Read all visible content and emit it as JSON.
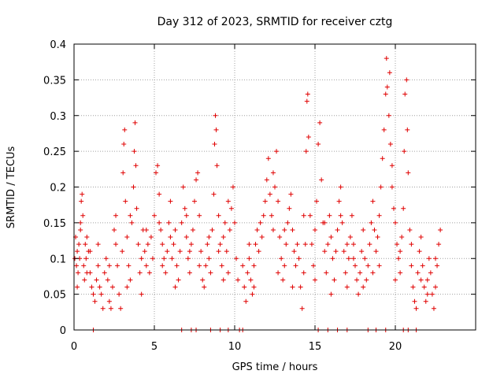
{
  "chart_data": {
    "type": "scatter",
    "title": "Day 312 of 2023, SRMTID for receiver cztg",
    "xlabel": "GPS time / hours",
    "ylabel": "SRMTID / TECUs",
    "xlim": [
      0,
      25
    ],
    "ylim": [
      0,
      0.4
    ],
    "x_ticks": [
      0,
      5,
      10,
      15,
      20
    ],
    "x_tick_labels": [
      "0",
      "5",
      "10",
      "15",
      "20"
    ],
    "y_ticks": [
      0,
      0.05,
      0.1,
      0.15,
      0.2,
      0.25,
      0.3,
      0.35,
      0.4
    ],
    "y_tick_labels": [
      "0",
      "0.05",
      "0.1",
      "0.15",
      "0.2",
      "0.25",
      "0.3",
      "0.35",
      "0.4"
    ],
    "grid": true,
    "legend": "none",
    "marker": "+",
    "color": "#e00000",
    "series": [
      {
        "name": "SRMTID",
        "points": [
          [
            0.05,
            0.1
          ],
          [
            0.1,
            0.13
          ],
          [
            0.15,
            0.09
          ],
          [
            0.2,
            0.11
          ],
          [
            0.25,
            0.08
          ],
          [
            0.3,
            0.12
          ],
          [
            0.35,
            0.1
          ],
          [
            0.4,
            0.15
          ],
          [
            0.45,
            0.18
          ],
          [
            0.5,
            0.19
          ],
          [
            0.55,
            0.16
          ],
          [
            0.6,
            0.09
          ],
          [
            0.65,
            0.07
          ],
          [
            0.7,
            0.12
          ],
          [
            0.75,
            0.1
          ],
          [
            0.8,
            0.13
          ],
          [
            0.9,
            0.11
          ],
          [
            1.0,
            0.08
          ],
          [
            1.1,
            0.06
          ],
          [
            1.2,
            0.05
          ],
          [
            1.3,
            0.04
          ],
          [
            1.4,
            0.07
          ],
          [
            1.5,
            0.09
          ],
          [
            1.6,
            0.06
          ],
          [
            1.7,
            0.05
          ],
          [
            1.8,
            0.03
          ],
          [
            1.9,
            0.08
          ],
          [
            2.0,
            0.1
          ],
          [
            2.1,
            0.07
          ],
          [
            2.2,
            0.04
          ],
          [
            2.3,
            0.03
          ],
          [
            2.4,
            0.06
          ],
          [
            2.5,
            0.14
          ],
          [
            2.6,
            0.16
          ],
          [
            2.7,
            0.09
          ],
          [
            2.8,
            0.05
          ],
          [
            2.9,
            0.03
          ],
          [
            3.0,
            0.11
          ],
          [
            3.05,
            0.22
          ],
          [
            3.1,
            0.26
          ],
          [
            3.15,
            0.28
          ],
          [
            3.2,
            0.18
          ],
          [
            3.3,
            0.13
          ],
          [
            3.4,
            0.09
          ],
          [
            3.5,
            0.07
          ],
          [
            3.6,
            0.15
          ],
          [
            3.7,
            0.2
          ],
          [
            3.75,
            0.25
          ],
          [
            3.8,
            0.29
          ],
          [
            3.85,
            0.23
          ],
          [
            3.9,
            0.17
          ],
          [
            4.0,
            0.12
          ],
          [
            4.1,
            0.08
          ],
          [
            4.2,
            0.1
          ],
          [
            4.3,
            0.14
          ],
          [
            4.4,
            0.11
          ],
          [
            4.5,
            0.09
          ],
          [
            4.6,
            0.12
          ],
          [
            4.7,
            0.08
          ],
          [
            4.8,
            0.13
          ],
          [
            4.9,
            0.1
          ],
          [
            5.0,
            0.16
          ],
          [
            5.1,
            0.22
          ],
          [
            5.2,
            0.23
          ],
          [
            5.3,
            0.19
          ],
          [
            5.4,
            0.14
          ],
          [
            5.5,
            0.12
          ],
          [
            5.6,
            0.1
          ],
          [
            5.7,
            0.08
          ],
          [
            5.8,
            0.11
          ],
          [
            5.9,
            0.15
          ],
          [
            6.0,
            0.13
          ],
          [
            6.1,
            0.1
          ],
          [
            6.2,
            0.12
          ],
          [
            6.3,
            0.14
          ],
          [
            6.4,
            0.09
          ],
          [
            6.5,
            0.07
          ],
          [
            6.6,
            0.11
          ],
          [
            6.7,
            0.15
          ],
          [
            6.8,
            0.2
          ],
          [
            6.9,
            0.17
          ],
          [
            7.0,
            0.13
          ],
          [
            7.1,
            0.1
          ],
          [
            7.2,
            0.08
          ],
          [
            7.3,
            0.12
          ],
          [
            7.4,
            0.14
          ],
          [
            7.5,
            0.18
          ],
          [
            7.6,
            0.21
          ],
          [
            7.7,
            0.22
          ],
          [
            7.8,
            0.16
          ],
          [
            7.9,
            0.11
          ],
          [
            8.0,
            0.07
          ],
          [
            8.1,
            0.06
          ],
          [
            8.2,
            0.09
          ],
          [
            8.3,
            0.12
          ],
          [
            8.4,
            0.1
          ],
          [
            8.5,
            0.08
          ],
          [
            8.6,
            0.14
          ],
          [
            8.7,
            0.19
          ],
          [
            8.75,
            0.26
          ],
          [
            8.8,
            0.3
          ],
          [
            8.85,
            0.28
          ],
          [
            8.9,
            0.23
          ],
          [
            9.0,
            0.16
          ],
          [
            9.1,
            0.12
          ],
          [
            9.2,
            0.09
          ],
          [
            9.3,
            0.13
          ],
          [
            9.4,
            0.15
          ],
          [
            9.5,
            0.11
          ],
          [
            9.6,
            0.08
          ],
          [
            9.7,
            0.14
          ],
          [
            9.8,
            0.17
          ],
          [
            9.9,
            0.2
          ],
          [
            10.0,
            0.15
          ],
          [
            10.1,
            0.1
          ],
          [
            10.2,
            0.07
          ],
          [
            10.5,
            0.09
          ],
          [
            10.6,
            0.06
          ],
          [
            10.7,
            0.04
          ],
          [
            10.8,
            0.08
          ],
          [
            10.9,
            0.1
          ],
          [
            11.0,
            0.07
          ],
          [
            11.1,
            0.05
          ],
          [
            11.2,
            0.09
          ],
          [
            11.3,
            0.12
          ],
          [
            11.4,
            0.14
          ],
          [
            11.5,
            0.11
          ],
          [
            11.6,
            0.15
          ],
          [
            11.7,
            0.13
          ],
          [
            11.8,
            0.16
          ],
          [
            11.9,
            0.18
          ],
          [
            12.0,
            0.21
          ],
          [
            12.1,
            0.24
          ],
          [
            12.2,
            0.19
          ],
          [
            12.3,
            0.16
          ],
          [
            12.4,
            0.14
          ],
          [
            12.5,
            0.2
          ],
          [
            12.6,
            0.25
          ],
          [
            12.7,
            0.18
          ],
          [
            12.8,
            0.13
          ],
          [
            12.9,
            0.1
          ],
          [
            13.0,
            0.07
          ],
          [
            13.1,
            0.09
          ],
          [
            13.2,
            0.12
          ],
          [
            13.3,
            0.15
          ],
          [
            13.4,
            0.17
          ],
          [
            13.5,
            0.19
          ],
          [
            13.6,
            0.14
          ],
          [
            13.7,
            0.11
          ],
          [
            13.8,
            0.09
          ],
          [
            13.9,
            0.12
          ],
          [
            14.0,
            0.1
          ],
          [
            14.1,
            0.06
          ],
          [
            14.2,
            0.03
          ],
          [
            14.3,
            0.08
          ],
          [
            14.4,
            0.12
          ],
          [
            14.45,
            0.25
          ],
          [
            14.5,
            0.32
          ],
          [
            14.55,
            0.33
          ],
          [
            14.6,
            0.27
          ],
          [
            14.7,
            0.16
          ],
          [
            14.8,
            0.12
          ],
          [
            14.9,
            0.09
          ],
          [
            15.0,
            0.14
          ],
          [
            15.1,
            0.18
          ],
          [
            15.2,
            0.26
          ],
          [
            15.3,
            0.29
          ],
          [
            15.4,
            0.21
          ],
          [
            15.5,
            0.15
          ],
          [
            15.6,
            0.11
          ],
          [
            15.7,
            0.08
          ],
          [
            15.8,
            0.12
          ],
          [
            15.9,
            0.16
          ],
          [
            16.0,
            0.13
          ],
          [
            16.1,
            0.1
          ],
          [
            16.2,
            0.07
          ],
          [
            16.3,
            0.11
          ],
          [
            16.4,
            0.14
          ],
          [
            16.5,
            0.18
          ],
          [
            16.6,
            0.2
          ],
          [
            16.7,
            0.15
          ],
          [
            16.8,
            0.11
          ],
          [
            16.9,
            0.08
          ],
          [
            17.0,
            0.06
          ],
          [
            17.1,
            0.1
          ],
          [
            17.2,
            0.13
          ],
          [
            17.3,
            0.16
          ],
          [
            17.4,
            0.12
          ],
          [
            17.5,
            0.09
          ],
          [
            17.6,
            0.07
          ],
          [
            17.7,
            0.05
          ],
          [
            17.8,
            0.08
          ],
          [
            17.9,
            0.11
          ],
          [
            18.0,
            0.14
          ],
          [
            18.1,
            0.1
          ],
          [
            18.2,
            0.07
          ],
          [
            18.3,
            0.09
          ],
          [
            18.4,
            0.12
          ],
          [
            18.5,
            0.15
          ],
          [
            18.6,
            0.18
          ],
          [
            18.7,
            0.14
          ],
          [
            18.8,
            0.11
          ],
          [
            18.9,
            0.13
          ],
          [
            19.0,
            0.16
          ],
          [
            19.1,
            0.2
          ],
          [
            19.2,
            0.24
          ],
          [
            19.3,
            0.28
          ],
          [
            19.4,
            0.33
          ],
          [
            19.45,
            0.38
          ],
          [
            19.5,
            0.34
          ],
          [
            19.6,
            0.3
          ],
          [
            19.65,
            0.36
          ],
          [
            19.7,
            0.26
          ],
          [
            19.8,
            0.2
          ],
          [
            19.9,
            0.17
          ],
          [
            20.0,
            0.15
          ],
          [
            20.1,
            0.12
          ],
          [
            20.2,
            0.1
          ],
          [
            20.3,
            0.08
          ],
          [
            20.4,
            0.13
          ],
          [
            20.5,
            0.17
          ],
          [
            20.55,
            0.25
          ],
          [
            20.6,
            0.33
          ],
          [
            20.7,
            0.35
          ],
          [
            20.75,
            0.28
          ],
          [
            20.8,
            0.22
          ],
          [
            20.9,
            0.14
          ],
          [
            21.0,
            0.09
          ],
          [
            21.1,
            0.06
          ],
          [
            21.2,
            0.04
          ],
          [
            21.3,
            0.03
          ],
          [
            21.4,
            0.08
          ],
          [
            21.5,
            0.11
          ],
          [
            21.6,
            0.13
          ],
          [
            21.7,
            0.09
          ],
          [
            21.8,
            0.06
          ],
          [
            21.9,
            0.04
          ],
          [
            22.0,
            0.07
          ],
          [
            22.1,
            0.1
          ],
          [
            22.2,
            0.08
          ],
          [
            22.3,
            0.05
          ],
          [
            22.4,
            0.03
          ],
          [
            22.5,
            0.06
          ],
          [
            22.6,
            0.09
          ],
          [
            22.7,
            0.12
          ],
          [
            22.8,
            0.14
          ],
          [
            0.2,
            0.06
          ],
          [
            0.8,
            0.08
          ],
          [
            1.5,
            0.12
          ],
          [
            2.2,
            0.09
          ],
          [
            3.3,
            0.06
          ],
          [
            4.2,
            0.05
          ],
          [
            5.5,
            0.09
          ],
          [
            6.3,
            0.06
          ],
          [
            7.2,
            0.11
          ],
          [
            8.4,
            0.13
          ],
          [
            9.3,
            0.07
          ],
          [
            11.2,
            0.06
          ],
          [
            12.7,
            0.08
          ],
          [
            13.6,
            0.06
          ],
          [
            15.0,
            0.07
          ],
          [
            16.0,
            0.05
          ],
          [
            17.0,
            0.12
          ],
          [
            18.0,
            0.06
          ],
          [
            19.0,
            0.09
          ],
          [
            20.0,
            0.07
          ],
          [
            21.0,
            0.12
          ],
          [
            22.0,
            0.05
          ],
          [
            3.5,
            0.16
          ],
          [
            6.0,
            0.18
          ],
          [
            9.6,
            0.18
          ],
          [
            12.4,
            0.22
          ],
          [
            14.3,
            0.16
          ],
          [
            16.6,
            0.16
          ],
          [
            19.8,
            0.23
          ],
          [
            0.4,
            0.14
          ],
          [
            1.0,
            0.11
          ],
          [
            2.6,
            0.12
          ],
          [
            4.5,
            0.14
          ],
          [
            5.3,
            0.15
          ],
          [
            7.0,
            0.16
          ],
          [
            7.8,
            0.09
          ],
          [
            9.0,
            0.11
          ],
          [
            10.9,
            0.12
          ],
          [
            13.1,
            0.14
          ],
          [
            15.6,
            0.15
          ],
          [
            17.4,
            0.1
          ],
          [
            18.6,
            0.08
          ],
          [
            20.3,
            0.11
          ],
          [
            21.6,
            0.07
          ],
          [
            22.5,
            0.1
          ],
          [
            6.7,
            0.0
          ],
          [
            7.3,
            0.0
          ],
          [
            7.6,
            0.0
          ],
          [
            8.5,
            0.0
          ],
          [
            9.1,
            0.0
          ],
          [
            9.6,
            0.0
          ],
          [
            10.3,
            0.0
          ],
          [
            10.5,
            0.0
          ],
          [
            1.2,
            0.0
          ],
          [
            15.2,
            0.0
          ],
          [
            15.8,
            0.0
          ],
          [
            16.4,
            0.0
          ],
          [
            17.0,
            0.0
          ],
          [
            18.3,
            0.0
          ],
          [
            18.8,
            0.0
          ],
          [
            19.4,
            0.0
          ],
          [
            20.5,
            0.0
          ],
          [
            20.8,
            0.0
          ],
          [
            21.3,
            0.0
          ]
        ]
      }
    ]
  }
}
